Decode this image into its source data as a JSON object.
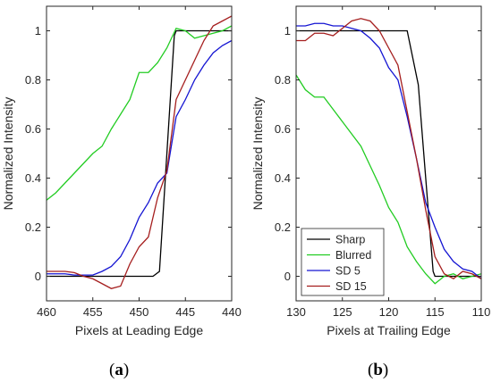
{
  "panels": [
    {
      "label_prefix": "(",
      "label_letter": "a",
      "label_suffix": ")"
    },
    {
      "label_prefix": "(",
      "label_letter": "b",
      "label_suffix": ")"
    }
  ],
  "chart_data": [
    {
      "type": "line",
      "xlabel": "Pixels at Leading Edge",
      "ylabel": "Normalized Intensity",
      "xlim": [
        460,
        440
      ],
      "x_reversed": true,
      "ylim": [
        -0.1,
        1.1
      ],
      "xticks": [
        460,
        455,
        450,
        445,
        440
      ],
      "yticks": [
        0,
        0.2,
        0.4,
        0.6,
        0.8,
        1
      ],
      "ytick_labels": [
        "0",
        "0.2",
        "0.4",
        "0.6",
        "0.8",
        "1"
      ],
      "grid": false,
      "series": [
        {
          "name": "Sharp",
          "color": "#000000",
          "x": [
            460,
            448.5,
            447.8,
            446.2,
            446,
            440
          ],
          "y": [
            0,
            0,
            0.02,
            0.98,
            1.0,
            1.0
          ]
        },
        {
          "name": "Blurred",
          "color": "#22cc22",
          "x": [
            460,
            459,
            458,
            457,
            456,
            455,
            454,
            453,
            452,
            451,
            450,
            449,
            448,
            447,
            446,
            445,
            444,
            443,
            442,
            441,
            440
          ],
          "y": [
            0.31,
            0.34,
            0.38,
            0.42,
            0.46,
            0.5,
            0.53,
            0.6,
            0.66,
            0.72,
            0.83,
            0.83,
            0.87,
            0.93,
            1.01,
            1.0,
            0.97,
            0.98,
            0.99,
            1.0,
            1.02
          ]
        },
        {
          "name": "SD 5",
          "color": "#1414d2",
          "x": [
            460,
            459,
            458,
            457,
            456,
            455,
            454,
            453,
            452,
            451,
            450,
            449,
            448,
            447,
            446,
            445,
            444,
            443,
            442,
            441,
            440
          ],
          "y": [
            0.01,
            0.01,
            0.01,
            0.005,
            0.005,
            0.005,
            0.02,
            0.04,
            0.08,
            0.15,
            0.24,
            0.3,
            0.38,
            0.42,
            0.65,
            0.72,
            0.8,
            0.86,
            0.91,
            0.94,
            0.96
          ]
        },
        {
          "name": "SD 15",
          "color": "#a51e1e",
          "x": [
            460,
            459,
            458,
            457,
            456,
            455,
            454,
            453,
            452,
            451,
            450,
            449,
            448,
            447,
            446,
            445,
            444,
            443,
            442,
            441,
            440
          ],
          "y": [
            0.02,
            0.02,
            0.02,
            0.015,
            0.0,
            -0.01,
            -0.03,
            -0.05,
            -0.04,
            0.05,
            0.12,
            0.16,
            0.32,
            0.43,
            0.72,
            0.8,
            0.88,
            0.96,
            1.02,
            1.04,
            1.06
          ]
        }
      ]
    },
    {
      "type": "line",
      "xlabel": "Pixels at Trailing Edge",
      "ylabel": "Normalized Intensity",
      "xlim": [
        130,
        110
      ],
      "x_reversed": true,
      "ylim": [
        -0.1,
        1.1
      ],
      "xticks": [
        130,
        125,
        120,
        115,
        110
      ],
      "yticks": [
        0,
        0.2,
        0.4,
        0.6,
        0.8,
        1
      ],
      "ytick_labels": [
        "0",
        "0.2",
        "0.4",
        "0.6",
        "0.8",
        "1"
      ],
      "grid": false,
      "legend": {
        "position": "bottom-left",
        "entries": [
          "Sharp",
          "Blurred",
          "SD 5",
          "SD 15"
        ]
      },
      "series": [
        {
          "name": "Sharp",
          "color": "#000000",
          "x": [
            130,
            118,
            116.8,
            115.2,
            115,
            110
          ],
          "y": [
            1.0,
            1.0,
            0.78,
            0.02,
            0,
            0
          ]
        },
        {
          "name": "Blurred",
          "color": "#22cc22",
          "x": [
            130,
            129,
            128,
            127,
            126,
            125,
            124,
            123,
            122,
            121,
            120,
            119,
            118,
            117,
            116,
            115,
            114,
            113,
            112,
            111,
            110
          ],
          "y": [
            0.82,
            0.76,
            0.73,
            0.73,
            0.68,
            0.63,
            0.58,
            0.53,
            0.45,
            0.37,
            0.28,
            0.22,
            0.12,
            0.06,
            0.01,
            -0.03,
            0.0,
            0.01,
            -0.01,
            0.0,
            0.01
          ]
        },
        {
          "name": "SD 5",
          "color": "#1414d2",
          "x": [
            130,
            129,
            128,
            127,
            126,
            125,
            124,
            123,
            122,
            121,
            120,
            119,
            118,
            117,
            116,
            115,
            114,
            113,
            112,
            111,
            110
          ],
          "y": [
            1.02,
            1.02,
            1.03,
            1.03,
            1.02,
            1.02,
            1.01,
            1.0,
            0.97,
            0.93,
            0.85,
            0.8,
            0.65,
            0.48,
            0.3,
            0.2,
            0.11,
            0.06,
            0.03,
            0.02,
            -0.01
          ]
        },
        {
          "name": "SD 15",
          "color": "#a51e1e",
          "x": [
            130,
            129,
            128,
            127,
            126,
            125,
            124,
            123,
            122,
            121,
            120,
            119,
            118,
            117,
            116,
            115,
            114,
            113,
            112,
            111,
            110
          ],
          "y": [
            0.96,
            0.96,
            0.99,
            0.99,
            0.98,
            1.01,
            1.04,
            1.05,
            1.04,
            1.0,
            0.93,
            0.86,
            0.67,
            0.48,
            0.27,
            0.08,
            0.01,
            -0.01,
            0.02,
            0.01,
            -0.01
          ]
        }
      ]
    }
  ]
}
